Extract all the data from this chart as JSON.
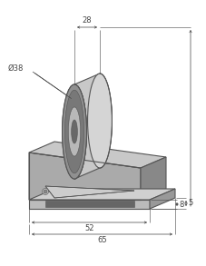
{
  "bg_color": "#ffffff",
  "line_color": "#555555",
  "dim_color": "#444444",
  "fill_body_front": "#aaaaaa",
  "fill_body_top": "#c8c8c8",
  "fill_body_right": "#888888",
  "fill_base_front": "#bbbbbb",
  "fill_base_top": "#d0d0d0",
  "fill_base_right": "#999999",
  "fill_wheel_face": "#909090",
  "fill_wheel_rim": "#c8c8c8",
  "fill_wheel_groove": "#787878",
  "fill_wheel_hub": "#b8b8b8",
  "fill_wheel_bore": "#686868",
  "fill_wheel_back": "#d5d5d5",
  "fill_slot": "#666666",
  "fill_bolt": "#c0c0c0",
  "dim_38": "Ø38",
  "dim_28": "28",
  "dim_52": "52",
  "dim_65": "65",
  "dim_8": "8",
  "dim_5": "5",
  "figsize": [
    2.28,
    2.93
  ],
  "dpi": 100
}
